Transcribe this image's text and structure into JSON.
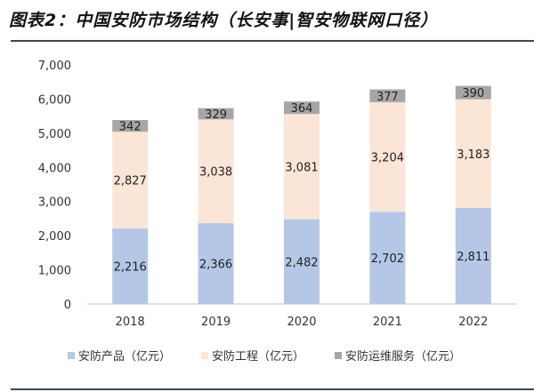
{
  "title": "图表2：中国安防市场结构（长安事|智安物联网口径）",
  "chart_data": {
    "type": "bar",
    "stacked": true,
    "categories": [
      "2018",
      "2019",
      "2020",
      "2021",
      "2022"
    ],
    "series": [
      {
        "name": "安防产品（亿元）",
        "color": "#b4c7e7",
        "values": [
          2216,
          2366,
          2482,
          2702,
          2811
        ],
        "labels": [
          "2,216",
          "2,366",
          "2,482",
          "2,702",
          "2,811"
        ]
      },
      {
        "name": "安防工程（亿元）",
        "color": "#fbe5d6",
        "values": [
          2827,
          3038,
          3081,
          3204,
          3183
        ],
        "labels": [
          "2,827",
          "3,038",
          "3,081",
          "3,204",
          "3,183"
        ]
      },
      {
        "name": "安防运维服务（亿元）",
        "color": "#a6a6a6",
        "values": [
          342,
          329,
          364,
          377,
          390
        ],
        "labels": [
          "342",
          "329",
          "364",
          "377",
          "390"
        ]
      }
    ],
    "ylim": [
      0,
      7000
    ],
    "yticks": [
      "0",
      "1,000",
      "2,000",
      "3,000",
      "4,000",
      "5,000",
      "6,000",
      "7,000"
    ],
    "grid": false,
    "legend": "bottom"
  }
}
